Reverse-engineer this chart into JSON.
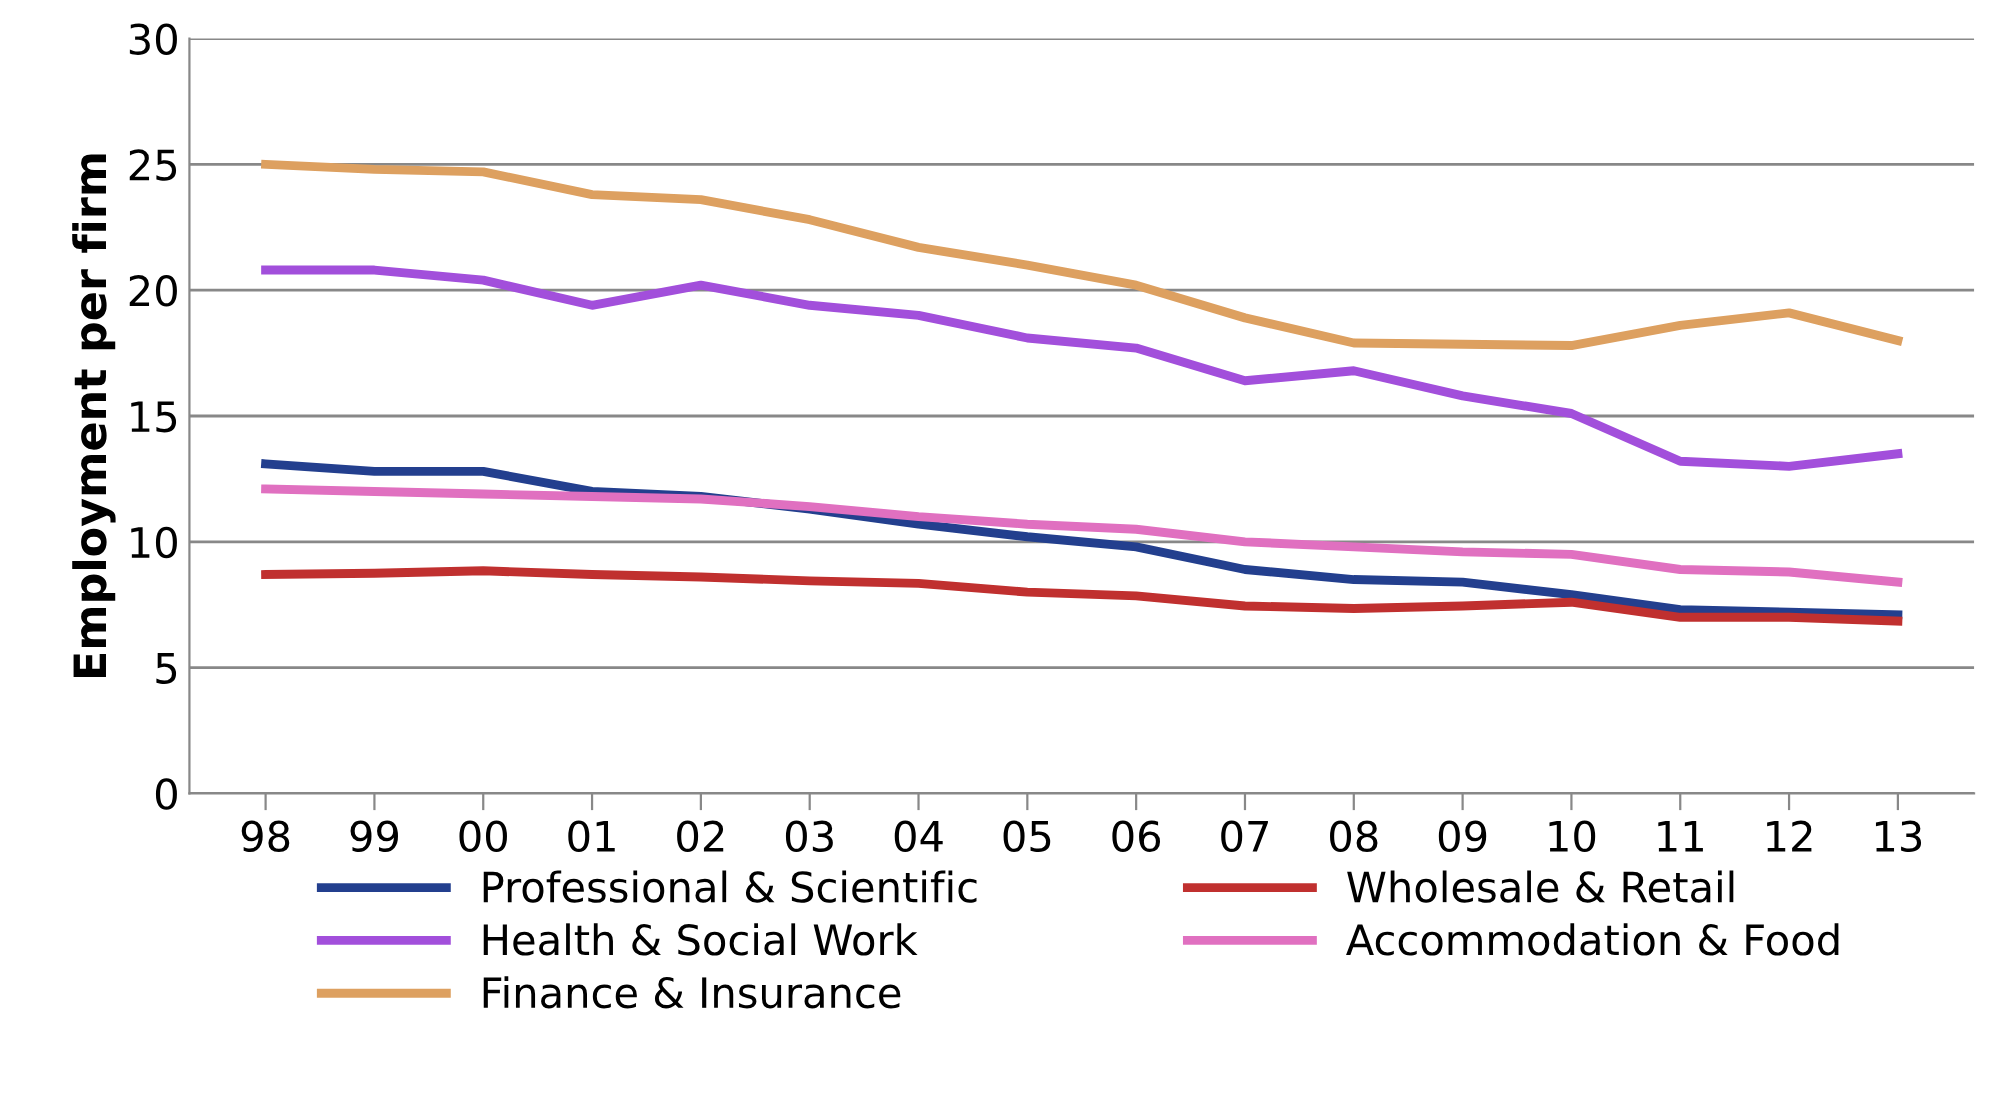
{
  "chart_data": {
    "type": "line",
    "ylabel": "Employment per firm",
    "categories": [
      "98",
      "99",
      "00",
      "01",
      "02",
      "03",
      "04",
      "05",
      "06",
      "07",
      "08",
      "09",
      "10",
      "11",
      "12",
      "13"
    ],
    "ylim": [
      0,
      30
    ],
    "yticks": [
      0,
      5,
      10,
      15,
      20,
      25,
      30
    ],
    "grid": "y",
    "legend": "bottom",
    "marker": "none",
    "line_style": "solid",
    "series": [
      {
        "name": "Professional & Scientific",
        "color": "#233f8e",
        "values": [
          13.1,
          12.8,
          12.8,
          12.0,
          11.8,
          11.3,
          10.7,
          10.2,
          9.8,
          8.9,
          8.5,
          8.4,
          7.9,
          7.3,
          7.2,
          7.1
        ]
      },
      {
        "name": "Wholesale & Retail",
        "color": "#c0302f",
        "values": [
          8.7,
          8.75,
          8.85,
          8.7,
          8.6,
          8.45,
          8.35,
          8.0,
          7.85,
          7.45,
          7.35,
          7.45,
          7.6,
          7.0,
          7.0,
          6.85
        ]
      },
      {
        "name": "Health & Social Work",
        "color": "#a24fdb",
        "values": [
          20.8,
          20.8,
          20.4,
          19.4,
          20.2,
          19.4,
          19.0,
          18.1,
          17.7,
          16.4,
          16.8,
          15.8,
          15.1,
          13.2,
          13.0,
          13.5
        ]
      },
      {
        "name": "Accommodation & Food",
        "color": "#e070c0",
        "values": [
          12.1,
          12.0,
          11.9,
          11.8,
          11.7,
          11.4,
          11.0,
          10.7,
          10.5,
          10.0,
          9.8,
          9.6,
          9.5,
          8.9,
          8.8,
          8.4
        ]
      },
      {
        "name": "Finance & Insurance",
        "color": "#dda060",
        "values": [
          25.0,
          24.8,
          24.7,
          23.8,
          23.6,
          22.8,
          21.7,
          21.0,
          20.2,
          18.9,
          17.9,
          17.85,
          17.8,
          18.6,
          19.1,
          18.0
        ]
      }
    ]
  }
}
